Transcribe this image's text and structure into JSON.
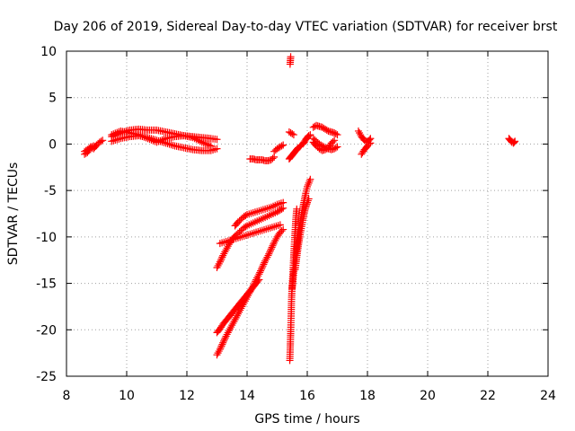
{
  "chart_data": {
    "type": "scatter",
    "title": "Day 206 of 2019, Sidereal Day-to-day VTEC variation (SDTVAR) for receiver brst",
    "xlabel": "GPS time / hours",
    "ylabel": "SDTVAR / TECUs",
    "xlim": [
      8,
      24
    ],
    "ylim": [
      -25,
      10
    ],
    "xticks": [
      8,
      10,
      12,
      14,
      16,
      18,
      20,
      22,
      24
    ],
    "yticks": [
      -25,
      -20,
      -15,
      -10,
      -5,
      0,
      5,
      10
    ],
    "grid": true,
    "marker": "+",
    "marker_color": "#ff0000",
    "series": [
      {
        "segments": [
          {
            "x": [
              8.6,
              8.7,
              8.8,
              8.9,
              9.0,
              9.1,
              9.2
            ],
            "y": [
              -0.8,
              -0.6,
              -0.3,
              -0.5,
              -0.1,
              0.2,
              0.4
            ]
          },
          {
            "x": [
              8.6,
              8.7,
              8.8,
              8.9
            ],
            "y": [
              -1.1,
              -0.9,
              -0.4,
              -0.2
            ]
          },
          {
            "x": [
              9.5,
              9.8,
              10.1,
              10.4,
              10.7,
              11.0,
              11.3,
              11.6,
              11.9,
              12.2,
              12.5,
              12.8,
              13.0
            ],
            "y": [
              0.8,
              1.2,
              1.5,
              1.6,
              1.5,
              1.5,
              1.3,
              1.1,
              0.9,
              0.8,
              0.7,
              0.6,
              0.5
            ]
          },
          {
            "x": [
              9.5,
              9.8,
              10.1,
              10.4,
              10.7,
              11.0,
              11.3,
              11.6,
              11.9,
              12.2,
              12.5,
              12.8,
              13.0
            ],
            "y": [
              0.3,
              0.6,
              0.8,
              0.9,
              0.7,
              0.4,
              0.1,
              -0.2,
              -0.4,
              -0.6,
              -0.7,
              -0.7,
              -0.5
            ]
          },
          {
            "x": [
              9.5,
              9.8,
              10.1,
              10.4,
              10.7,
              11.0,
              11.3,
              11.6,
              11.9,
              12.2,
              12.5,
              12.8
            ],
            "y": [
              1.0,
              1.4,
              1.2,
              1.0,
              0.6,
              0.2,
              0.6,
              0.8,
              0.9,
              0.7,
              0.2,
              -0.2
            ]
          },
          {
            "x": [
              13.0,
              13.1,
              13.2,
              13.3,
              13.4,
              13.5,
              13.6,
              13.7,
              13.8,
              13.9,
              14.0,
              14.1,
              14.2,
              14.3,
              14.4,
              14.5,
              14.6,
              14.7,
              14.8,
              14.9,
              15.0,
              15.1,
              15.2
            ],
            "y": [
              -22.7,
              -22.1,
              -21.4,
              -20.7,
              -20.1,
              -19.5,
              -18.9,
              -18.3,
              -17.7,
              -17.1,
              -16.5,
              -15.9,
              -15.3,
              -14.6,
              -14.0,
              -13.3,
              -12.6,
              -12.0,
              -11.3,
              -10.6,
              -10.0,
              -9.5,
              -9.2
            ]
          },
          {
            "x": [
              13.0,
              13.1,
              13.2,
              13.3,
              13.4,
              13.5,
              13.6,
              13.7,
              13.8,
              13.9,
              14.0,
              14.1,
              14.2,
              14.3,
              14.4
            ],
            "y": [
              -20.3,
              -19.9,
              -19.4,
              -19.0,
              -18.6,
              -18.2,
              -17.8,
              -17.4,
              -17.0,
              -16.6,
              -16.2,
              -15.8,
              -15.4,
              -15.0,
              -14.6
            ]
          },
          {
            "x": [
              13.0,
              13.1,
              13.2,
              13.3,
              13.4,
              13.5,
              13.6,
              13.7,
              13.8,
              13.9,
              14.0,
              14.2,
              14.4,
              14.6,
              14.8,
              15.0,
              15.1,
              15.2
            ],
            "y": [
              -13.3,
              -12.7,
              -12.0,
              -11.4,
              -10.8,
              -10.3,
              -9.9,
              -9.6,
              -9.3,
              -9.0,
              -8.8,
              -8.5,
              -8.2,
              -7.9,
              -7.6,
              -7.3,
              -7.1,
              -6.9
            ]
          },
          {
            "x": [
              13.1,
              13.3,
              13.5,
              13.7,
              13.9,
              14.1,
              14.3,
              14.5,
              14.7,
              14.9,
              15.1
            ],
            "y": [
              -10.7,
              -10.5,
              -10.3,
              -10.1,
              -9.9,
              -9.7,
              -9.5,
              -9.3,
              -9.1,
              -8.9,
              -8.7
            ]
          },
          {
            "x": [
              13.6,
              13.7,
              13.8,
              13.9,
              14.0,
              14.2,
              14.4,
              14.6,
              14.8,
              15.0,
              15.2
            ],
            "y": [
              -8.8,
              -8.4,
              -8.1,
              -7.8,
              -7.6,
              -7.4,
              -7.2,
              -7.0,
              -6.8,
              -6.5,
              -6.3
            ]
          },
          {
            "x": [
              14.1,
              14.2,
              14.3,
              14.4,
              14.5,
              14.6,
              14.7,
              14.8,
              14.9
            ],
            "y": [
              -1.6,
              -1.6,
              -1.7,
              -1.7,
              -1.7,
              -1.8,
              -1.8,
              -1.7,
              -1.4
            ]
          },
          {
            "x": [
              14.9,
              15.0,
              15.1,
              15.2
            ],
            "y": [
              -0.8,
              -0.5,
              -0.3,
              -0.1
            ]
          },
          {
            "x": [
              15.4,
              15.45,
              15.5,
              15.55
            ],
            "y": [
              1.3,
              1.2,
              1.1,
              1.0
            ]
          },
          {
            "x": [
              15.43,
              15.44,
              15.45
            ],
            "y": [
              8.6,
              9.0,
              9.4
            ]
          },
          {
            "x": [
              15.4,
              15.45,
              15.5,
              15.55,
              15.6,
              15.65,
              15.7,
              15.75,
              15.8,
              15.85,
              15.9,
              15.95,
              16.0,
              16.05,
              16.1
            ],
            "y": [
              -1.6,
              -1.4,
              -1.2,
              -1.0,
              -0.8,
              -0.6,
              -0.4,
              -0.3,
              -0.1,
              0.0,
              0.2,
              0.5,
              0.7,
              0.9,
              1.0
            ]
          },
          {
            "x": [
              15.42,
              15.43,
              15.44,
              15.45,
              15.46,
              15.47,
              15.48,
              15.5,
              15.52,
              15.54,
              15.56,
              15.58,
              15.6,
              15.62,
              15.65
            ],
            "y": [
              -23.3,
              -22.4,
              -21.3,
              -20.2,
              -19.0,
              -17.8,
              -16.5,
              -15.2,
              -14.0,
              -12.8,
              -11.5,
              -10.3,
              -9.2,
              -8.1,
              -7.0
            ]
          },
          {
            "x": [
              15.5,
              15.55,
              15.6,
              15.65,
              15.7,
              15.75,
              15.8,
              15.85,
              15.9,
              15.95,
              16.0,
              16.05,
              16.1
            ],
            "y": [
              -15.5,
              -13.9,
              -12.4,
              -11.1,
              -9.9,
              -8.8,
              -7.8,
              -6.9,
              -6.1,
              -5.3,
              -4.6,
              -4.2,
              -3.8
            ]
          },
          {
            "x": [
              15.6,
              15.65,
              15.7,
              15.75,
              15.8,
              15.85,
              15.9,
              15.95,
              16.0,
              16.05
            ],
            "y": [
              -13.5,
              -12.2,
              -11.0,
              -10.0,
              -9.1,
              -8.2,
              -7.4,
              -6.8,
              -6.3,
              -5.9
            ]
          },
          {
            "x": [
              16.2,
              16.3,
              16.4,
              16.5,
              16.6,
              16.7,
              16.8,
              16.9,
              17.0
            ],
            "y": [
              1.8,
              2.0,
              1.9,
              1.8,
              1.6,
              1.4,
              1.3,
              1.2,
              1.0
            ]
          },
          {
            "x": [
              16.2,
              16.3,
              16.4,
              16.5,
              16.6,
              16.7,
              16.8,
              16.9,
              17.0
            ],
            "y": [
              0.6,
              0.3,
              0.0,
              -0.2,
              -0.4,
              -0.5,
              -0.6,
              -0.5,
              -0.3
            ]
          },
          {
            "x": [
              16.2,
              16.3,
              16.4,
              16.5,
              16.6,
              16.7,
              16.8,
              16.9
            ],
            "y": [
              0.2,
              -0.2,
              -0.5,
              -0.7,
              -0.6,
              -0.4,
              0.1,
              0.4
            ]
          },
          {
            "x": [
              17.7,
              17.8,
              17.9,
              18.0,
              18.1
            ],
            "y": [
              1.4,
              0.8,
              0.4,
              0.2,
              0.6
            ]
          },
          {
            "x": [
              17.8,
              17.9,
              18.0,
              18.1
            ],
            "y": [
              -1.1,
              -0.6,
              -0.2,
              0.1
            ]
          },
          {
            "x": [
              22.7,
              22.75,
              22.8,
              22.85,
              22.9
            ],
            "y": [
              0.6,
              0.4,
              0.2,
              0.1,
              0.3
            ]
          }
        ]
      }
    ]
  }
}
